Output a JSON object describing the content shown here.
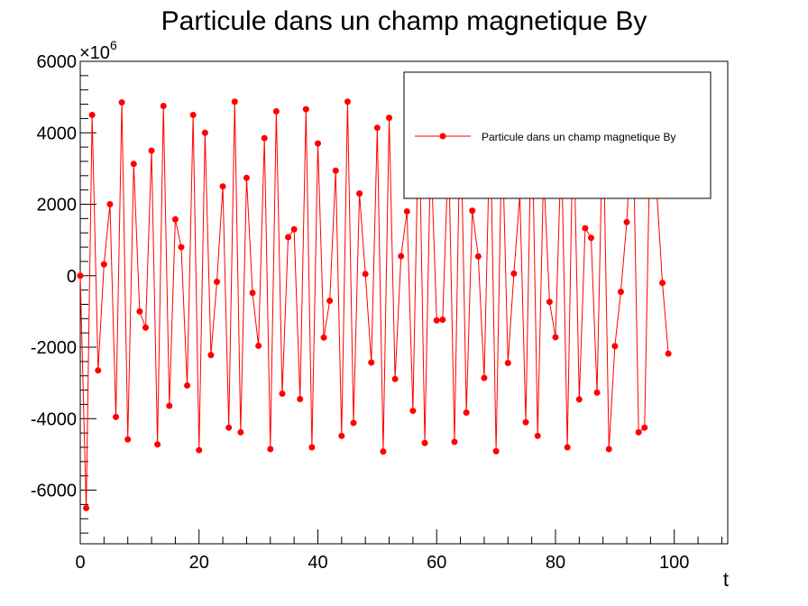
{
  "chart_data": {
    "type": "line",
    "title": "Particule dans un champ magnetique By",
    "xlabel": "t",
    "ylabel": "",
    "y_multiplier": "×10",
    "y_exponent": "6",
    "xlim": [
      0,
      109
    ],
    "ylim": [
      -7500,
      6000
    ],
    "x_ticks": [
      0,
      20,
      40,
      60,
      80,
      100
    ],
    "x_tick_labels": [
      "0",
      "20",
      "40",
      "60",
      "80",
      "100"
    ],
    "y_ticks": [
      -6000,
      -4000,
      -2000,
      0,
      2000,
      4000,
      6000
    ],
    "y_tick_labels": [
      "-6000",
      "-4000",
      "-2000",
      "0",
      "2000",
      "4000",
      "6000"
    ],
    "grid": false,
    "legend_position": "top-right",
    "series": [
      {
        "name": "Particule dans un champ magnetique By",
        "color": "#ff0000",
        "marker": "circle",
        "x": [
          0,
          1,
          2,
          3,
          4,
          5,
          6,
          7,
          8,
          9,
          10,
          11,
          12,
          13,
          14,
          15,
          16,
          17,
          18,
          19,
          20,
          21,
          22,
          23,
          24,
          25,
          26,
          27,
          28,
          29,
          30,
          31,
          32,
          33,
          34,
          35,
          36,
          37,
          38,
          39,
          40,
          41,
          42,
          43,
          44,
          45,
          46,
          47,
          48,
          49,
          50,
          51,
          52,
          53,
          54,
          55,
          56,
          57,
          58,
          59,
          60,
          61,
          62,
          63,
          64,
          65,
          66,
          67,
          68,
          69,
          70,
          71,
          72,
          73,
          74,
          75,
          76,
          77,
          78,
          79,
          80,
          81,
          82,
          83,
          84,
          85,
          86,
          87,
          88,
          89,
          90,
          91,
          92,
          93,
          94,
          95,
          96,
          97,
          98,
          99
        ],
        "y": [
          0,
          -6500,
          4500,
          -2650,
          320,
          2000,
          -3950,
          4850,
          -4580,
          3130,
          -1000,
          -1450,
          3500,
          -4720,
          4750,
          -3640,
          1580,
          800,
          -3070,
          4500,
          -4880,
          4000,
          -2220,
          -170,
          2500,
          -4250,
          4870,
          -4380,
          2740,
          -480,
          -1960,
          3850,
          -4850,
          4600,
          -3300,
          1080,
          1300,
          -3450,
          4660,
          -4800,
          3700,
          -1730,
          -700,
          2940,
          -4480,
          4870,
          -4120,
          2300,
          50,
          -2430,
          4140,
          -4920,
          4420,
          -2890,
          550,
          1800,
          -3780,
          4800,
          -4680,
          3600,
          -1250,
          -1230,
          3600,
          -4650,
          4800,
          -3830,
          1820,
          540,
          -2860,
          4400,
          -4910,
          4130,
          -2440,
          60,
          2280,
          -4100,
          4880,
          -4480,
          2930,
          -730,
          -1720,
          3680,
          -4800,
          4660,
          -3460,
          1330,
          1060,
          -3270,
          4600,
          -4850,
          -1970,
          -450,
          1500,
          4700,
          -4380,
          -4250,
          4500,
          2500,
          -200,
          -2180
        ]
      }
    ]
  }
}
